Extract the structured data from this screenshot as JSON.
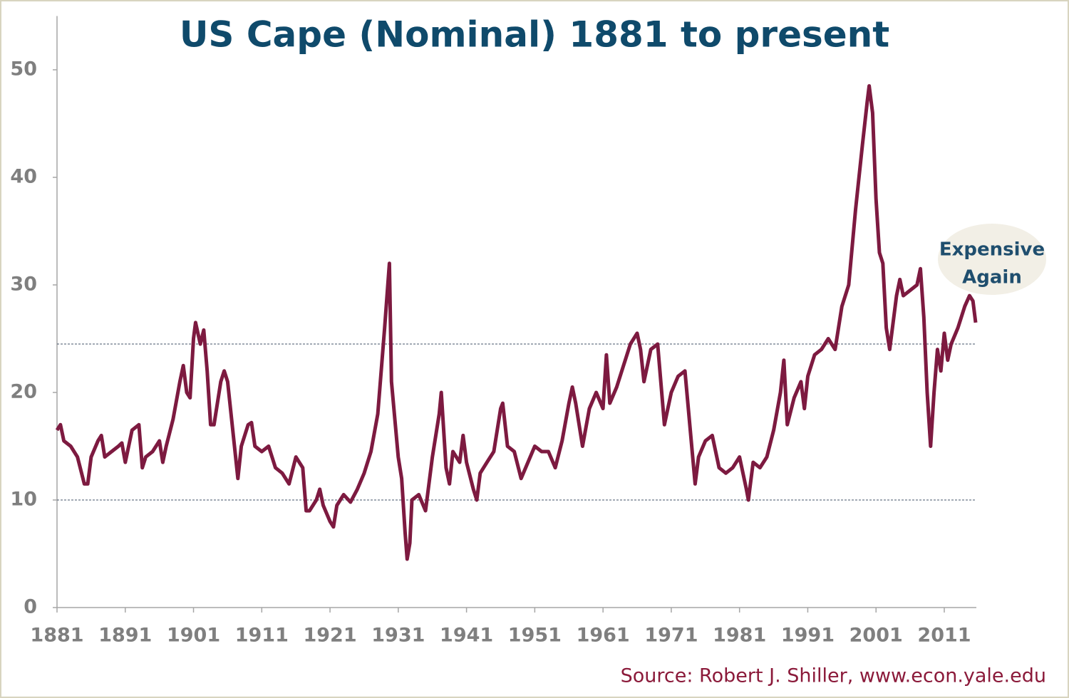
{
  "chart_data": {
    "type": "line",
    "title": "US Cape (Nominal) 1881  to present",
    "source": "Source: Robert J. Shiller, www.econ.yale.edu",
    "annotation_lines": [
      "Expensive",
      "Again"
    ],
    "x": [
      1881,
      1881.5,
      1882,
      1883,
      1884,
      1885,
      1885.5,
      1886,
      1887,
      1887.5,
      1888,
      1889,
      1890,
      1890.5,
      1891,
      1892,
      1893,
      1893.5,
      1894,
      1895,
      1896,
      1896.5,
      1897,
      1898,
      1899,
      1899.5,
      1900,
      1900.5,
      1901,
      1901.3,
      1902,
      1902.5,
      1903,
      1903.5,
      1904,
      1905,
      1905.5,
      1906,
      1907,
      1907.5,
      1908,
      1909,
      1909.5,
      1910,
      1911,
      1912,
      1913,
      1914,
      1915,
      1916,
      1917,
      1917.5,
      1918,
      1919,
      1919.5,
      1920,
      1921,
      1921.5,
      1922,
      1923,
      1924,
      1925,
      1926,
      1927,
      1928,
      1929,
      1929.7,
      1930,
      1931,
      1931.5,
      1932,
      1932.3,
      1932.7,
      1933,
      1934,
      1935,
      1936,
      1937,
      1937.3,
      1938,
      1938.5,
      1939,
      1940,
      1940.5,
      1941,
      1942,
      1942.5,
      1943,
      1944,
      1945,
      1946,
      1946.3,
      1947,
      1948,
      1949,
      1950,
      1951,
      1952,
      1953,
      1954,
      1955,
      1956,
      1956.5,
      1957,
      1958,
      1959,
      1960,
      1961,
      1961.5,
      1962,
      1963,
      1964,
      1965,
      1966,
      1966.5,
      1967,
      1968,
      1969,
      1970,
      1971,
      1972,
      1973,
      1974,
      1974.5,
      1975,
      1976,
      1977,
      1978,
      1979,
      1980,
      1981,
      1982,
      1982.3,
      1983,
      1984,
      1985,
      1986,
      1987,
      1987.5,
      1988,
      1989,
      1990,
      1990.5,
      1991,
      1992,
      1993,
      1994,
      1995,
      1996,
      1997,
      1998,
      1998.5,
      1999,
      1999.7,
      2000,
      2000.5,
      2001,
      2001.5,
      2002,
      2002.5,
      2003,
      2004,
      2004.5,
      2005,
      2006,
      2007,
      2007.5,
      2008,
      2008.5,
      2009,
      2009.5,
      2010,
      2010.5,
      2011,
      2011.5,
      2012,
      2013,
      2014,
      2014.7,
      2015.2,
      2015.6
    ],
    "series": [
      {
        "name": "CAPE",
        "color": "#7d1a40",
        "values": [
          16.5,
          17,
          15.5,
          15,
          14,
          11.5,
          11.5,
          14,
          15.5,
          16,
          14,
          14.5,
          15,
          15.3,
          13.5,
          16.5,
          17,
          13,
          14,
          14.5,
          15.5,
          13.5,
          15,
          17.5,
          21,
          22.5,
          20,
          19.5,
          25,
          26.5,
          24.5,
          25.8,
          22,
          17,
          17,
          21,
          22,
          21,
          15,
          12,
          15,
          17,
          17.2,
          15,
          14.5,
          15,
          13,
          12.5,
          11.5,
          14,
          13,
          9,
          9,
          10,
          11,
          9.5,
          8,
          7.5,
          9.5,
          10.5,
          9.8,
          11,
          12.5,
          14.5,
          18,
          26,
          32,
          21,
          14,
          12,
          7,
          4.5,
          6,
          10,
          10.5,
          9,
          14,
          18,
          20,
          13,
          11.5,
          14.5,
          13.5,
          16,
          13.5,
          11,
          10,
          12.5,
          13.5,
          14.5,
          18.5,
          19,
          15,
          14.5,
          12,
          13.5,
          15,
          14.5,
          14.5,
          13,
          15.5,
          19,
          20.5,
          19,
          15,
          18.5,
          20,
          18.5,
          23.5,
          19,
          20.5,
          22.5,
          24.5,
          25.5,
          24,
          21,
          24,
          24.5,
          17,
          20,
          21.5,
          22,
          15,
          11.5,
          14,
          15.5,
          16,
          13,
          12.5,
          13,
          14,
          11,
          10,
          13.5,
          13,
          14,
          16.5,
          20,
          23,
          17,
          19.5,
          21,
          18.5,
          21.5,
          23.5,
          24,
          25,
          24,
          28,
          30,
          37,
          40,
          43,
          47,
          48.5,
          46,
          38,
          33,
          32,
          26,
          24,
          29,
          30.5,
          29,
          29.5,
          30,
          31.5,
          27,
          20,
          15,
          20,
          24,
          22,
          25.5,
          23,
          24.5,
          26,
          28,
          29,
          28.5,
          26.5
        ]
      }
    ],
    "hlines": [
      24.5,
      10
    ],
    "xlim": [
      1881,
      2015.7
    ],
    "xticks": [
      1881,
      1891,
      1901,
      1911,
      1921,
      1931,
      1941,
      1951,
      1961,
      1971,
      1981,
      1991,
      2001,
      2011
    ],
    "ylim": [
      0,
      55
    ],
    "yticks": [
      0,
      10,
      20,
      30,
      40,
      50
    ]
  }
}
